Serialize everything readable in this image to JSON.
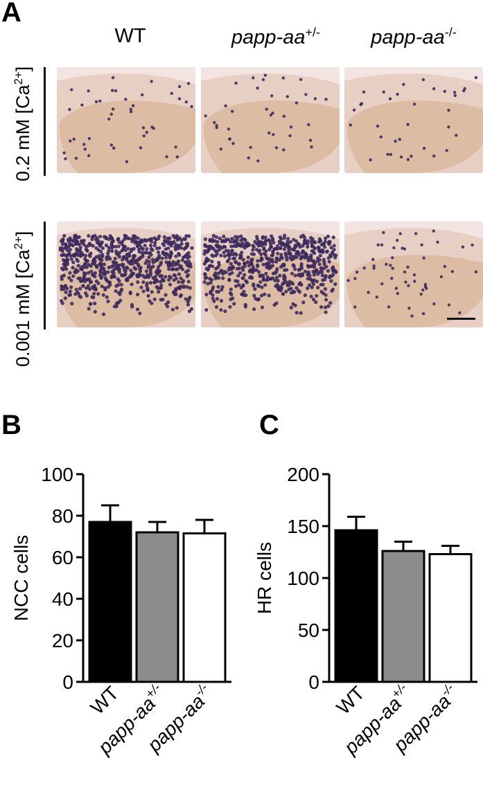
{
  "panels": {
    "a_letter": "A",
    "b_letter": "B",
    "c_letter": "C"
  },
  "panel_a": {
    "column_headers": [
      {
        "base": "WT",
        "sup": ""
      },
      {
        "base": "papp-aa",
        "sup": "+/-"
      },
      {
        "base": "papp-aa",
        "sup": "-/-"
      }
    ],
    "row_labels": [
      {
        "text": "0.2 mM [Ca",
        "sup": "2+",
        "close": "]"
      },
      {
        "text": "0.001 mM [Ca",
        "sup": "2+",
        "close": "]"
      }
    ],
    "image_names": [
      "embryo-wt-0.2mM",
      "embryo-het-0.2mM",
      "embryo-mut-0.2mM",
      "embryo-wt-0.001mM",
      "embryo-het-0.001mM",
      "embryo-mut-0.001mM"
    ]
  },
  "colors": {
    "wt_bar": "#000000",
    "het_bar": "#8c8c8c",
    "mut_bar": "#ffffff",
    "tissue_bg": "#e8cfc4",
    "yolk": "#d9b89c",
    "cell_stain": "#3d2a5c"
  },
  "chart_data": [
    {
      "type": "bar",
      "categories": [
        "WT",
        "papp-aa+/-",
        "papp-aa-/-"
      ],
      "category_labels": [
        {
          "base": "WT",
          "sup": ""
        },
        {
          "base": "papp-aa",
          "sup": "+/-"
        },
        {
          "base": "papp-aa",
          "sup": "-/-"
        }
      ],
      "values": [
        77,
        72,
        71.5
      ],
      "errors": [
        8,
        5,
        6.5
      ],
      "ylabel": "NCC cells",
      "ylim": [
        0,
        100
      ],
      "yticks": [
        0,
        20,
        40,
        60,
        80,
        100
      ]
    },
    {
      "type": "bar",
      "categories": [
        "WT",
        "papp-aa+/-",
        "papp-aa-/-"
      ],
      "category_labels": [
        {
          "base": "WT",
          "sup": ""
        },
        {
          "base": "papp-aa",
          "sup": "+/-"
        },
        {
          "base": "papp-aa",
          "sup": "-/-"
        }
      ],
      "values": [
        146,
        126,
        123
      ],
      "errors": [
        13,
        9,
        8
      ],
      "ylabel": "HR cells",
      "ylim": [
        0,
        200
      ],
      "yticks": [
        0,
        50,
        100,
        150,
        200
      ]
    }
  ]
}
